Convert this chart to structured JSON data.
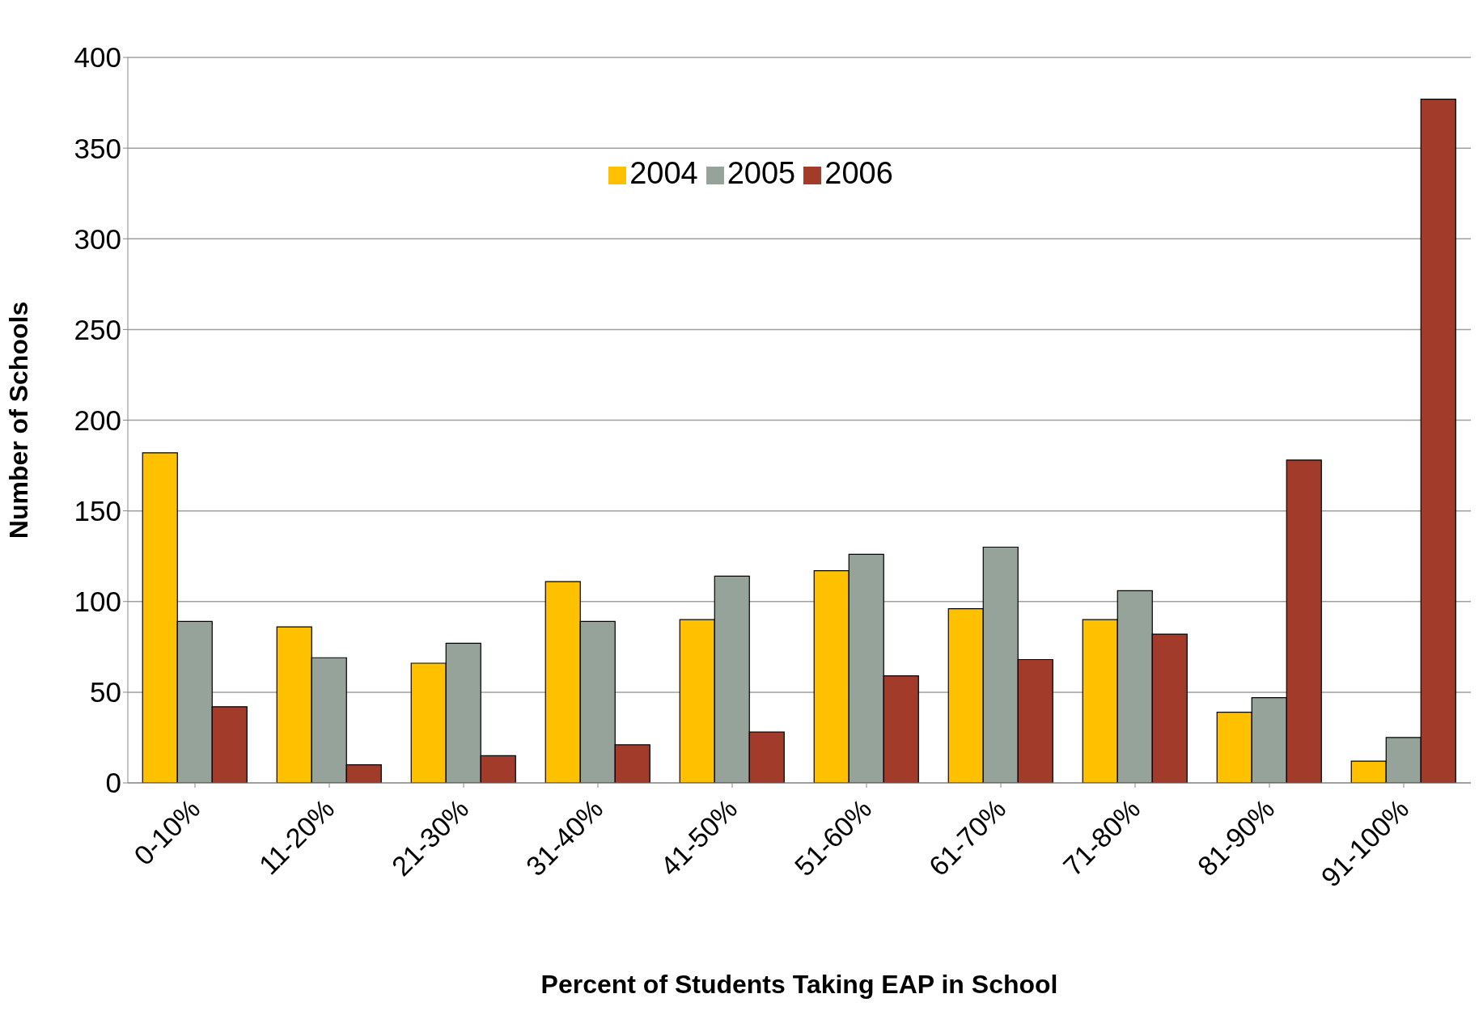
{
  "chart_data": {
    "type": "bar",
    "xlabel": "Percent of Students Taking EAP  in School",
    "ylabel": "Number of Schools",
    "categories": [
      "0-10%",
      "11-20%",
      "21-30%",
      "31-40%",
      "41-50%",
      "51-60%",
      "61-70%",
      "71-80%",
      "81-90%",
      "91-100%"
    ],
    "series": [
      {
        "name": "2004",
        "color": "#ffc000",
        "values": [
          182,
          86,
          66,
          111,
          90,
          117,
          96,
          90,
          39,
          12
        ]
      },
      {
        "name": "2005",
        "color": "#95a39a",
        "values": [
          89,
          69,
          77,
          89,
          114,
          126,
          130,
          106,
          47,
          25
        ]
      },
      {
        "name": "2006",
        "color": "#a33b2b",
        "values": [
          42,
          10,
          15,
          21,
          28,
          59,
          68,
          82,
          178,
          377
        ]
      }
    ],
    "ylim": [
      0,
      400
    ],
    "yticks": [
      0,
      50,
      100,
      150,
      200,
      250,
      300,
      350,
      400
    ],
    "grid": "y",
    "legend": "top"
  }
}
